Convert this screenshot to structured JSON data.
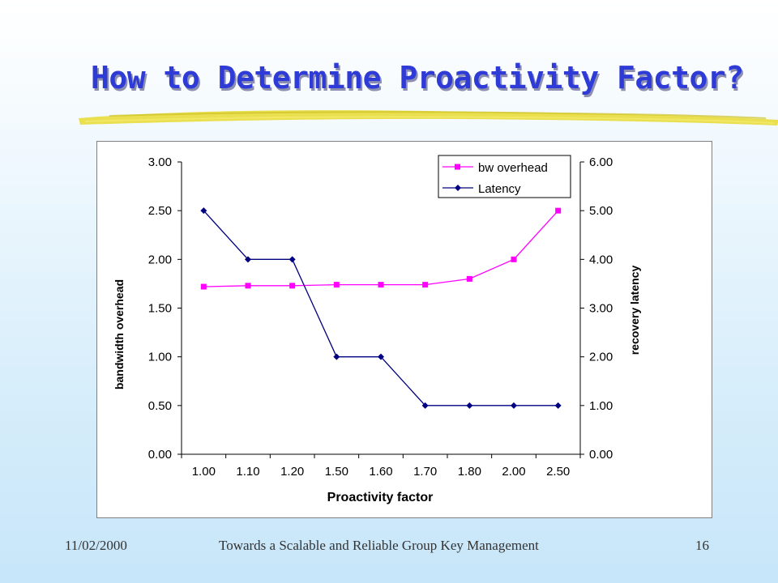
{
  "slide": {
    "title": "How to Determine Proactivity Factor?",
    "footer_date": "11/02/2000",
    "footer_title": "Towards a Scalable and Reliable Group Key Management",
    "page_number": "16"
  },
  "colors": {
    "title": "#2f3bd6",
    "underline": "#e8dc3c",
    "bw_overhead": "#ff00ff",
    "latency": "#000080"
  },
  "chart_data": {
    "type": "line",
    "categories": [
      "1.00",
      "1.10",
      "1.20",
      "1.50",
      "1.60",
      "1.70",
      "1.80",
      "2.00",
      "2.50"
    ],
    "xlabel": "Proactivity factor",
    "ylabel": "bandwidth overhead",
    "y2label": "recovery latency",
    "ylim": [
      0,
      3
    ],
    "y2lim": [
      0,
      6
    ],
    "yticks": [
      "0.00",
      "0.50",
      "1.00",
      "1.50",
      "2.00",
      "2.50",
      "3.00"
    ],
    "y2ticks": [
      "0.00",
      "1.00",
      "2.00",
      "3.00",
      "4.00",
      "5.00",
      "6.00"
    ],
    "legend_position": "top-right",
    "grid": false,
    "series": [
      {
        "name": "bw overhead",
        "axis": "left",
        "marker": "square",
        "values": [
          1.72,
          1.73,
          1.73,
          1.74,
          1.74,
          1.74,
          1.8,
          2.0,
          2.5
        ]
      },
      {
        "name": "Latency",
        "axis": "right",
        "marker": "diamond",
        "values": [
          5.0,
          4.0,
          4.0,
          2.0,
          2.0,
          1.0,
          1.0,
          1.0,
          1.0
        ]
      }
    ]
  }
}
